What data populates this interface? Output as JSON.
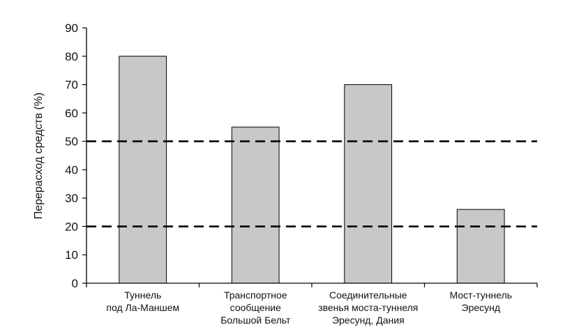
{
  "chart_data": {
    "type": "bar",
    "title": "",
    "xlabel": "",
    "ylabel": "Перерасход средств (%)",
    "ylim": [
      0,
      90
    ],
    "yticks": [
      0,
      10,
      20,
      30,
      40,
      50,
      60,
      70,
      80,
      90
    ],
    "categories": [
      [
        "Туннель",
        "под Ла-Маншем"
      ],
      [
        "Транспортное",
        "сообщение",
        "Большой Бельт"
      ],
      [
        "Соединительные",
        "звенья моста-туннеля",
        "Эресунд, Дания"
      ],
      [
        "Мост-туннель",
        "Эресунд"
      ]
    ],
    "values": [
      80,
      55,
      70,
      26
    ],
    "reference_lines": [
      50,
      20
    ],
    "grid": false,
    "bar_color": "#c8c8c8",
    "bar_edge_color": "#000000",
    "reference_line_style": "dashed"
  }
}
